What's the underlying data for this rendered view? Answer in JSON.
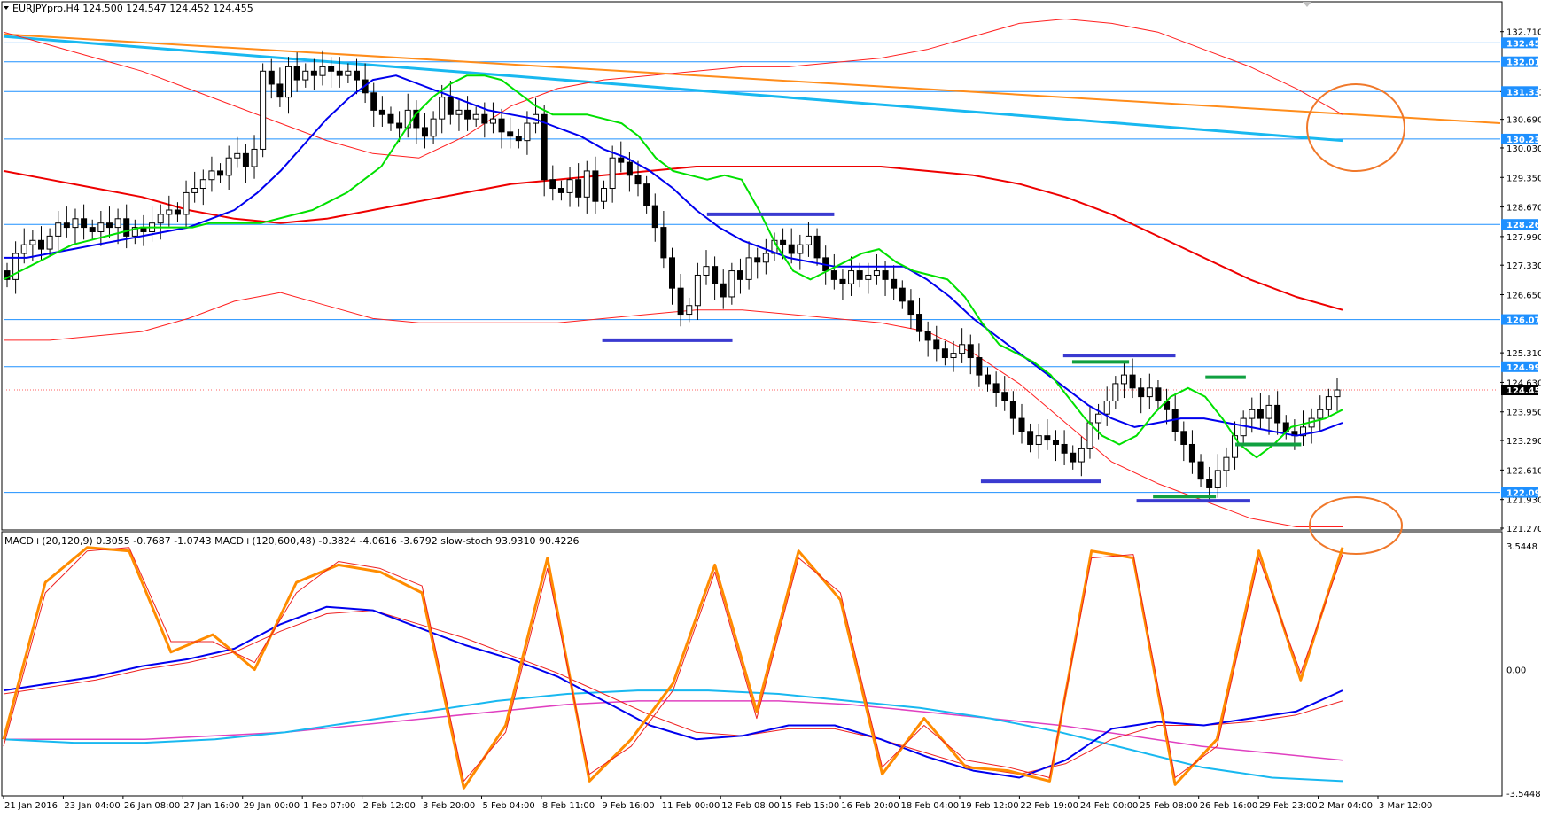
{
  "window": {
    "symbol_header": "EURJPYpro,H4  124.500 124.547 124.452 124.455",
    "indicator_header": "MACD+(20,120,9) 0.3055 -0.7687 -1.0743  MACD+(120,600,48) -0.3824 -4.0616 -3.6792  slow-stoch 93.9310 90.4226"
  },
  "colors": {
    "bull_candle": "#ffffff",
    "bear_candle": "#000000",
    "ma_fast": "#00e000",
    "ma_mid": "#0000ee",
    "ma_slow": "#ee0000",
    "envelope": "#ff2020",
    "trend_orange": "#ff8c1a",
    "trend_cyan": "#18b8f0",
    "hline": "#1e90ff",
    "sr_blue": "#3a3ad0",
    "sr_green": "#10a040",
    "circle": "#f0782a",
    "macd_fast": "#0000ee",
    "macd_fast_signal": "#ee2020",
    "macd_slow": "#18b8f0",
    "macd_slow_signal": "#e040c0",
    "stoch_main": "#ff8c00",
    "stoch_signal": "#ee2020"
  },
  "chart_data": {
    "type": "candlestick",
    "symbol": "EURJPYpro",
    "timeframe": "H4",
    "ohlc_last": {
      "open": 124.5,
      "high": 124.547,
      "low": 124.452,
      "close": 124.455
    },
    "ylim": [
      121.27,
      132.99
    ],
    "y_ticks": [
      "132.710",
      "131.330",
      "130.690",
      "130.030",
      "129.350",
      "128.670",
      "127.990",
      "127.330",
      "126.650",
      "125.310",
      "124.630",
      "123.950",
      "123.290",
      "122.610",
      "121.930",
      "121.270"
    ],
    "horizontal_levels": [
      {
        "label": "132.452",
        "value": 132.452
      },
      {
        "label": "132.016",
        "value": 132.016
      },
      {
        "label": "131.330",
        "value": 131.33
      },
      {
        "label": "130.235",
        "value": 130.235
      },
      {
        "label": "128.269",
        "value": 128.269
      },
      {
        "label": "126.077",
        "value": 126.077
      },
      {
        "label": "124.990",
        "value": 124.99
      },
      {
        "label": "122.095",
        "value": 122.095
      }
    ],
    "current_price_label": "124.455",
    "x_labels": [
      "21 Jan 2016",
      "23 Jan 04:00",
      "26 Jan 08:00",
      "27 Jan 16:00",
      "29 Jan 00:00",
      "1 Feb 07:00",
      "2 Feb 12:00",
      "3 Feb 20:00",
      "5 Feb 04:00",
      "8 Feb 11:00",
      "9 Feb 16:00",
      "11 Feb 00:00",
      "12 Feb 08:00",
      "15 Feb 15:00",
      "16 Feb 20:00",
      "18 Feb 04:00",
      "19 Feb 12:00",
      "22 Feb 19:00",
      "24 Feb 00:00",
      "25 Feb 08:00",
      "26 Feb 16:00",
      "29 Feb 23:00",
      "2 Mar 04:00",
      "3 Mar 12:00"
    ],
    "closes": [
      127.0,
      127.6,
      127.8,
      127.9,
      127.7,
      128.0,
      128.3,
      128.2,
      128.4,
      128.2,
      128.1,
      128.3,
      128.2,
      128.4,
      128.0,
      128.2,
      128.1,
      128.3,
      128.5,
      128.6,
      128.5,
      129.0,
      129.1,
      129.3,
      129.5,
      129.4,
      129.8,
      129.9,
      129.6,
      130.0,
      131.8,
      131.5,
      131.2,
      131.9,
      131.6,
      131.8,
      131.7,
      131.9,
      131.8,
      131.7,
      131.8,
      131.6,
      131.3,
      130.9,
      130.8,
      130.6,
      130.5,
      130.9,
      130.5,
      130.3,
      130.7,
      131.2,
      130.8,
      130.9,
      130.7,
      130.8,
      130.6,
      130.7,
      130.4,
      130.3,
      130.2,
      130.6,
      130.8,
      129.3,
      129.1,
      129.0,
      129.3,
      128.9,
      129.5,
      128.8,
      129.1,
      129.8,
      129.7,
      129.4,
      129.2,
      128.7,
      128.2,
      127.5,
      126.8,
      126.2,
      126.4,
      127.1,
      127.3,
      126.9,
      126.6,
      127.2,
      127.0,
      127.5,
      127.4,
      127.6,
      127.9,
      127.8,
      127.6,
      127.8,
      128.0,
      127.5,
      127.2,
      127.0,
      126.9,
      127.2,
      127.0,
      127.1,
      127.2,
      127.0,
      126.8,
      126.5,
      126.2,
      125.8,
      125.6,
      125.4,
      125.2,
      125.3,
      125.5,
      125.2,
      124.8,
      124.6,
      124.4,
      124.2,
      123.8,
      123.5,
      123.2,
      123.4,
      123.3,
      123.2,
      123.0,
      122.8,
      123.1,
      123.7,
      123.9,
      124.2,
      124.6,
      124.8,
      124.5,
      124.3,
      124.5,
      124.2,
      124.0,
      123.5,
      123.2,
      122.8,
      122.4,
      122.2,
      122.6,
      122.9,
      123.4,
      123.8,
      124.0,
      123.8,
      124.1,
      123.7,
      123.5,
      123.4,
      123.6,
      123.8,
      124.0,
      124.3,
      124.455
    ],
    "ma_fast": [
      127.0,
      127.2,
      127.4,
      127.6,
      127.8,
      127.9,
      128.0,
      128.1,
      128.2,
      128.2,
      128.2,
      128.2,
      128.3,
      128.3,
      128.3,
      128.3,
      128.4,
      128.5,
      128.6,
      128.8,
      129.0,
      129.3,
      129.6,
      130.2,
      130.8,
      131.2,
      131.5,
      131.7,
      131.7,
      131.6,
      131.3,
      131.0,
      130.8,
      130.8,
      130.8,
      130.7,
      130.6,
      130.3,
      129.8,
      129.5,
      129.4,
      129.3,
      129.4,
      129.3,
      128.6,
      127.8,
      127.2,
      127.0,
      127.2,
      127.4,
      127.6,
      127.7,
      127.4,
      127.2,
      127.1,
      127.0,
      126.6,
      126.0,
      125.5,
      125.3,
      125.1,
      124.8,
      124.3,
      123.8,
      123.4,
      123.2,
      123.4,
      123.9,
      124.3,
      124.5,
      124.3,
      123.8,
      123.2,
      122.9,
      123.2,
      123.6,
      123.7,
      123.8,
      124.0
    ],
    "ma_mid": [
      127.5,
      127.5,
      127.6,
      127.7,
      127.8,
      127.9,
      128.0,
      128.1,
      128.2,
      128.4,
      128.6,
      129.0,
      129.5,
      130.1,
      130.7,
      131.2,
      131.6,
      131.7,
      131.5,
      131.3,
      131.1,
      130.9,
      130.8,
      130.7,
      130.5,
      130.3,
      130.0,
      129.8,
      129.5,
      129.1,
      128.6,
      128.2,
      127.9,
      127.7,
      127.5,
      127.4,
      127.3,
      127.3,
      127.3,
      127.3,
      127.0,
      126.6,
      126.1,
      125.7,
      125.3,
      124.9,
      124.5,
      124.1,
      123.8,
      123.6,
      123.7,
      123.8,
      123.8,
      123.7,
      123.6,
      123.5,
      123.4,
      123.5,
      123.7
    ],
    "envelope_upper": [
      132.7,
      132.4,
      132.1,
      131.8,
      131.4,
      131.0,
      130.6,
      130.2,
      129.9,
      129.8,
      130.3,
      131.0,
      131.4,
      131.6,
      131.7,
      131.8,
      131.9,
      131.9,
      132.0,
      132.1,
      132.3,
      132.6,
      132.9,
      133.0,
      132.9,
      132.7,
      132.3,
      131.9,
      131.4,
      130.8
    ],
    "envelope_lower": [
      125.6,
      125.6,
      125.7,
      125.8,
      126.1,
      126.5,
      126.7,
      126.4,
      126.1,
      126.0,
      126.0,
      126.0,
      126.0,
      126.1,
      126.2,
      126.3,
      126.3,
      126.2,
      126.1,
      126.0,
      125.8,
      125.3,
      124.6,
      123.7,
      122.8,
      122.3,
      121.9,
      121.5,
      121.3,
      121.3
    ],
    "ma_slow": [
      129.5,
      129.3,
      129.1,
      128.9,
      128.6,
      128.4,
      128.3,
      128.4,
      128.6,
      128.8,
      129.0,
      129.2,
      129.3,
      129.4,
      129.5,
      129.6,
      129.6,
      129.6,
      129.6,
      129.6,
      129.5,
      129.4,
      129.2,
      128.9,
      128.5,
      128.0,
      127.5,
      127.0,
      126.6,
      126.3
    ],
    "trend_orange": [
      [
        132.65,
        130.6
      ]
    ],
    "trend_cyan": [
      [
        132.6,
        130.2
      ]
    ],
    "sr_segments": [
      {
        "color": "sr_blue",
        "value": 128.5,
        "from": 0.47,
        "to": 0.555
      },
      {
        "color": "sr_blue",
        "value": 125.6,
        "from": 0.4,
        "to": 0.487
      },
      {
        "color": "sr_blue",
        "value": 125.25,
        "from": 0.708,
        "to": 0.783
      },
      {
        "color": "sr_blue",
        "value": 122.35,
        "from": 0.653,
        "to": 0.733
      },
      {
        "color": "sr_blue",
        "value": 121.9,
        "from": 0.757,
        "to": 0.833
      },
      {
        "color": "sr_green",
        "value": 125.1,
        "from": 0.714,
        "to": 0.752
      },
      {
        "color": "sr_green",
        "value": 124.75,
        "from": 0.803,
        "to": 0.83
      },
      {
        "color": "sr_green",
        "value": 123.2,
        "from": 0.823,
        "to": 0.867
      },
      {
        "color": "sr_green",
        "value": 122.0,
        "from": 0.768,
        "to": 0.81
      }
    ],
    "macd_ylim": [
      -3.5448,
      3.5448
    ],
    "macd_y_ticks": [
      "3.5448",
      "0.00",
      "-3.5448"
    ],
    "stoch_main": [
      -2.0,
      2.5,
      3.5,
      3.4,
      0.5,
      1.0,
      0.0,
      2.5,
      3.0,
      2.8,
      2.2,
      -3.4,
      -1.6,
      3.2,
      -3.2,
      -2.0,
      -0.4,
      3.0,
      -1.2,
      3.4,
      2.0,
      -3.0,
      -1.4,
      -2.8,
      -2.9,
      -3.2,
      3.4,
      3.2,
      -3.3,
      -2.0,
      3.4,
      -0.3,
      3.5
    ],
    "stoch_signal": [
      -2.2,
      2.2,
      3.4,
      3.5,
      0.8,
      0.8,
      0.2,
      2.2,
      3.1,
      2.9,
      2.4,
      -3.2,
      -1.8,
      2.9,
      -3.0,
      -2.2,
      -0.6,
      2.8,
      -1.4,
      3.2,
      2.2,
      -2.8,
      -1.6,
      -2.6,
      -2.8,
      -3.1,
      3.2,
      3.3,
      -3.1,
      -2.2,
      3.2,
      -0.1,
      3.3
    ],
    "macd_fast": [
      -0.6,
      -0.4,
      -0.2,
      0.1,
      0.3,
      0.6,
      1.3,
      1.8,
      1.7,
      1.2,
      0.7,
      0.3,
      -0.2,
      -0.9,
      -1.6,
      -2.0,
      -1.9,
      -1.6,
      -1.6,
      -2.0,
      -2.5,
      -2.9,
      -3.1,
      -2.6,
      -1.7,
      -1.5,
      -1.6,
      -1.4,
      -1.2,
      -0.6
    ],
    "macd_fast_signal": [
      -0.7,
      -0.5,
      -0.3,
      0.0,
      0.2,
      0.5,
      1.1,
      1.6,
      1.7,
      1.3,
      0.9,
      0.4,
      -0.1,
      -0.7,
      -1.3,
      -1.8,
      -1.9,
      -1.7,
      -1.7,
      -2.0,
      -2.4,
      -2.8,
      -3.0,
      -2.7,
      -2.0,
      -1.6,
      -1.6,
      -1.5,
      -1.3,
      -0.9
    ],
    "macd_slow": [
      -2.0,
      -2.1,
      -2.1,
      -2.0,
      -1.8,
      -1.5,
      -1.2,
      -0.9,
      -0.7,
      -0.6,
      -0.6,
      -0.7,
      -0.9,
      -1.1,
      -1.4,
      -1.8,
      -2.3,
      -2.8,
      -3.1,
      -3.2
    ],
    "macd_slow_signal": [
      -2.0,
      -2.0,
      -2.0,
      -1.9,
      -1.8,
      -1.6,
      -1.4,
      -1.2,
      -1.0,
      -0.9,
      -0.9,
      -0.9,
      -1.0,
      -1.2,
      -1.4,
      -1.6,
      -1.9,
      -2.2,
      -2.4,
      -2.6
    ],
    "annotations": [
      "orange-ellipse-upper-right",
      "orange-ellipse-lower-right"
    ]
  }
}
